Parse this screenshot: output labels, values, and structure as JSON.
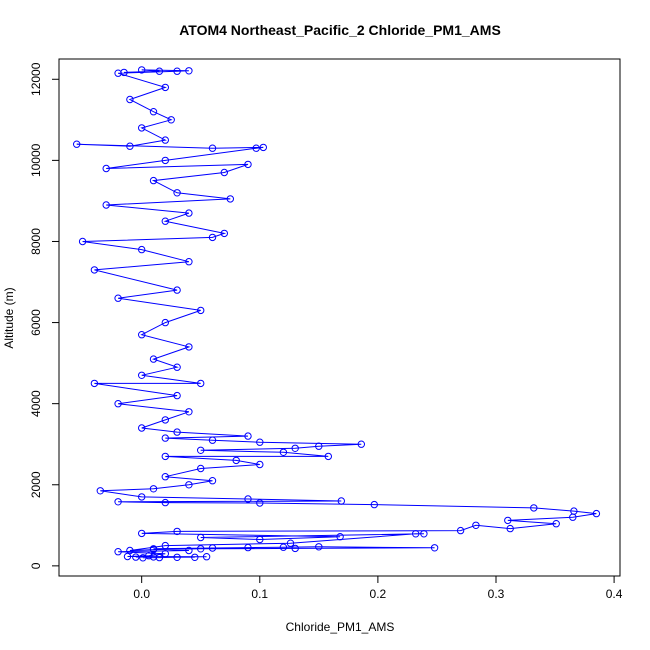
{
  "chart_data": {
    "type": "scatter",
    "title": "ATOM4 Northeast_Pacific_2 Chloride_PM1_AMS",
    "xlabel": "Chloride_PM1_AMS",
    "ylabel": "Altitude (m)",
    "xlim": [
      -0.07,
      0.405
    ],
    "ylim": [
      -250,
      12500
    ],
    "x_ticks": [
      0.0,
      0.1,
      0.2,
      0.3,
      0.4
    ],
    "x_tick_labels": [
      "0.0",
      "0.1",
      "0.2",
      "0.3",
      "0.4"
    ],
    "y_ticks": [
      0,
      2000,
      4000,
      6000,
      8000,
      10000,
      12000
    ],
    "y_tick_labels": [
      "0",
      "2000",
      "4000",
      "6000",
      "8000",
      "10000",
      "12000"
    ],
    "grid": false,
    "legend": "none",
    "series_color": "#0000ff",
    "marker": "open-circle",
    "connected": true,
    "points": [
      [
        0.001,
        200
      ],
      [
        0.015,
        205
      ],
      [
        0.03,
        210
      ],
      [
        -0.005,
        215
      ],
      [
        0.045,
        210
      ],
      [
        0.01,
        220
      ],
      [
        0.055,
        225
      ],
      [
        -0.012,
        230
      ],
      [
        0.006,
        250
      ],
      [
        0.02,
        300
      ],
      [
        -0.02,
        350
      ],
      [
        0.04,
        380
      ],
      [
        0.01,
        420
      ],
      [
        0.06,
        440
      ],
      [
        0.09,
        450
      ],
      [
        0.12,
        460
      ],
      [
        0.15,
        470
      ],
      [
        0.248,
        445
      ],
      [
        0.13,
        430
      ],
      [
        0.05,
        420
      ],
      [
        0.01,
        400
      ],
      [
        -0.01,
        380
      ],
      [
        0.02,
        500
      ],
      [
        0.126,
        560
      ],
      [
        0.232,
        790
      ],
      [
        0.239,
        790
      ],
      [
        0.05,
        700
      ],
      [
        0.1,
        650
      ],
      [
        0.168,
        720
      ],
      [
        0.0,
        800
      ],
      [
        0.03,
        850
      ],
      [
        0.27,
        870
      ],
      [
        0.283,
        1000
      ],
      [
        0.312,
        920
      ],
      [
        0.351,
        1040
      ],
      [
        0.31,
        1120
      ],
      [
        0.365,
        1200
      ],
      [
        0.385,
        1290
      ],
      [
        0.366,
        1350
      ],
      [
        0.332,
        1430
      ],
      [
        0.197,
        1510
      ],
      [
        0.1,
        1550
      ],
      [
        0.02,
        1560
      ],
      [
        -0.02,
        1580
      ],
      [
        0.169,
        1600
      ],
      [
        0.09,
        1650
      ],
      [
        0.0,
        1700
      ],
      [
        -0.035,
        1850
      ],
      [
        0.01,
        1900
      ],
      [
        0.04,
        2000
      ],
      [
        0.06,
        2100
      ],
      [
        0.02,
        2200
      ],
      [
        0.05,
        2400
      ],
      [
        0.1,
        2500
      ],
      [
        0.08,
        2600
      ],
      [
        0.02,
        2700
      ],
      [
        0.158,
        2700
      ],
      [
        0.12,
        2800
      ],
      [
        0.05,
        2850
      ],
      [
        0.13,
        2900
      ],
      [
        0.15,
        2950
      ],
      [
        0.186,
        3000
      ],
      [
        0.1,
        3050
      ],
      [
        0.06,
        3100
      ],
      [
        0.02,
        3150
      ],
      [
        0.09,
        3200
      ],
      [
        0.03,
        3300
      ],
      [
        0.0,
        3400
      ],
      [
        0.02,
        3600
      ],
      [
        0.04,
        3800
      ],
      [
        -0.02,
        4000
      ],
      [
        0.03,
        4200
      ],
      [
        -0.04,
        4500
      ],
      [
        0.05,
        4500
      ],
      [
        0.0,
        4700
      ],
      [
        0.03,
        4900
      ],
      [
        0.01,
        5100
      ],
      [
        0.04,
        5400
      ],
      [
        0.0,
        5700
      ],
      [
        0.02,
        6000
      ],
      [
        0.05,
        6300
      ],
      [
        -0.02,
        6600
      ],
      [
        0.03,
        6800
      ],
      [
        -0.04,
        7300
      ],
      [
        0.04,
        7500
      ],
      [
        0.0,
        7800
      ],
      [
        -0.05,
        8000
      ],
      [
        0.06,
        8100
      ],
      [
        0.07,
        8200
      ],
      [
        0.02,
        8500
      ],
      [
        0.04,
        8700
      ],
      [
        -0.03,
        8900
      ],
      [
        0.075,
        9050
      ],
      [
        0.03,
        9200
      ],
      [
        0.01,
        9500
      ],
      [
        0.07,
        9700
      ],
      [
        0.09,
        9900
      ],
      [
        -0.03,
        9800
      ],
      [
        0.02,
        10000
      ],
      [
        0.097,
        10300
      ],
      [
        0.103,
        10320
      ],
      [
        0.06,
        10300
      ],
      [
        -0.055,
        10400
      ],
      [
        -0.01,
        10350
      ],
      [
        0.02,
        10500
      ],
      [
        0.0,
        10800
      ],
      [
        0.025,
        11000
      ],
      [
        0.01,
        11200
      ],
      [
        -0.01,
        11500
      ],
      [
        0.02,
        11800
      ],
      [
        -0.02,
        12150
      ],
      [
        0.03,
        12200
      ],
      [
        0.04,
        12210
      ],
      [
        0.0,
        12230
      ],
      [
        0.015,
        12200
      ],
      [
        -0.015,
        12170
      ]
    ]
  }
}
